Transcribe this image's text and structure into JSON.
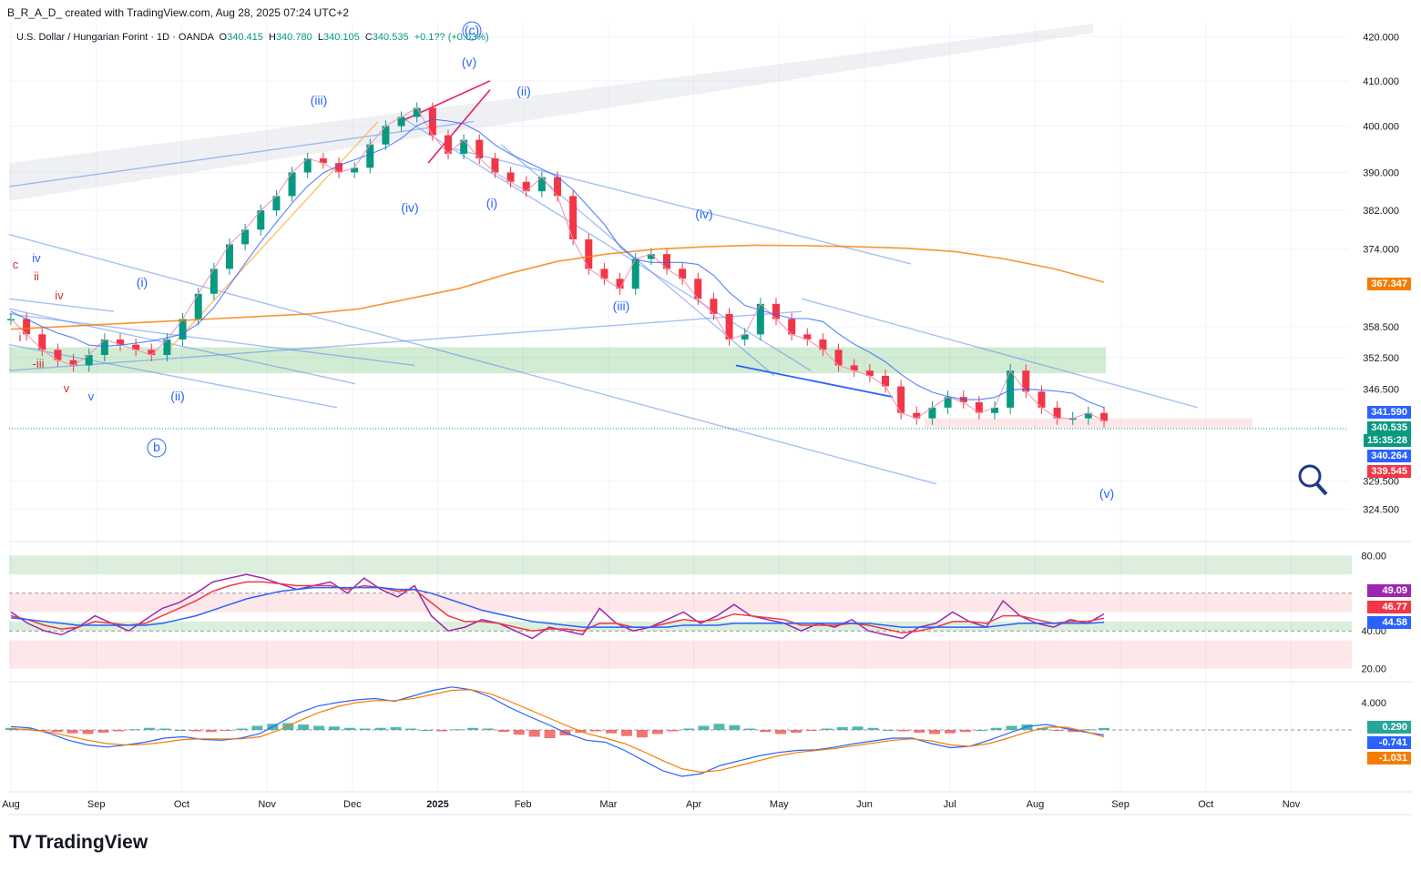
{
  "header": {
    "author_line": "B_R_A_D_ created with TradingView.com, Aug 28, 2025 07:24 UTC+2",
    "symbol": "U.S. Dollar / Hungarian Forint · 1D · OANDA",
    "o_label": "O",
    "o": "340.415",
    "h_label": "H",
    "h": "340.780",
    "l_label": "L",
    "l": "340.105",
    "c_label": "C",
    "c": "340.535",
    "change": "+0.1?? (+0.03%)"
  },
  "brand": {
    "logo": "TV",
    "name": "TradingView"
  },
  "colors": {
    "up": "#089981",
    "down": "#f23645",
    "blue_line": "#2962ff",
    "orange": "#f57c00",
    "green_zone": "#4caf50",
    "red_zone": "#f23645",
    "wave_label": "#2962ff",
    "sub_label": "#d32f2f"
  },
  "chart_data": [
    {
      "type": "line",
      "title": "",
      "x_axis": {
        "ticks": [
          "Aug",
          "Sep",
          "Oct",
          "Nov",
          "Dec",
          "2025",
          "Feb",
          "Mar",
          "Apr",
          "May",
          "Jun",
          "Jul",
          "Aug",
          "Sep",
          "Oct",
          "Nov"
        ]
      },
      "y_axis": {
        "ticks": [
          "420.000",
          "410.000",
          "400.000",
          "390.000",
          "382.000",
          "374.000",
          "358.500",
          "352.500",
          "346.500",
          "329.500",
          "324.500"
        ],
        "scale": "log"
      },
      "series": [
        {
          "values": [
            360,
            357,
            354,
            352,
            351,
            353,
            356,
            355,
            354,
            353,
            356,
            360,
            365,
            370,
            375,
            378,
            382,
            385,
            390,
            393,
            392,
            390,
            391,
            396,
            400,
            402,
            404,
            398,
            394,
            397,
            393,
            390,
            388,
            386,
            389,
            385,
            376,
            370,
            368,
            366,
            372,
            373,
            370,
            368,
            364,
            361,
            356,
            357,
            363,
            360,
            357,
            356,
            354,
            351,
            350,
            349,
            347,
            342,
            341,
            343,
            345,
            344,
            342,
            343,
            350,
            346,
            343,
            341,
            341,
            342,
            340.5
          ]
        }
      ],
      "price_tags": [
        "367.347",
        "341.590",
        "340.535",
        "15:35:28",
        "340.264",
        "339.545"
      ],
      "price_tag_colors": [
        "#f57c00",
        "#2962ff",
        "#089981",
        "#089981",
        "#2962ff",
        "#f23645"
      ],
      "wave_labels": [
        "(c)",
        "(v)",
        "(iii)",
        "(ii)",
        "(iv)",
        "(i)",
        "(iv)",
        "(iii)",
        "(i)",
        "(ii)",
        "b",
        "(v)",
        "iv",
        "ii",
        "iv",
        "i",
        "-iii",
        "c",
        "v",
        "v"
      ],
      "moving_averages": [
        {
          "color": "#f57c00",
          "values": [
            358,
            358.5,
            359,
            359.5,
            360,
            360.5,
            361,
            362,
            364,
            366,
            369,
            371.5,
            373,
            374,
            374.5,
            374.8,
            374.7,
            374.5,
            374.2,
            373.5,
            372,
            370,
            367.3
          ]
        }
      ]
    },
    {
      "type": "line",
      "title": "",
      "y_axis": {
        "ticks": [
          "80.00",
          "40.00",
          "20.00"
        ],
        "range": [
          15,
          85
        ]
      },
      "zones": [
        [
          70,
          80
        ],
        [
          50,
          60
        ],
        [
          40,
          45
        ],
        [
          20,
          35
        ]
      ],
      "price_tags": [
        "49.09",
        "46.77",
        "44.58"
      ],
      "price_tag_colors": [
        "#9c27b0",
        "#f23645",
        "#2962ff"
      ],
      "series": [
        {
          "color": "#9c27b0",
          "values": [
            50,
            44,
            40,
            38,
            42,
            48,
            44,
            40,
            46,
            52,
            55,
            60,
            66,
            68,
            70,
            68,
            65,
            62,
            64,
            66,
            60,
            68,
            62,
            58,
            64,
            48,
            40,
            42,
            46,
            44,
            40,
            36,
            42,
            40,
            38,
            52,
            44,
            40,
            42,
            46,
            50,
            44,
            48,
            54,
            48,
            46,
            44,
            40,
            44,
            42,
            46,
            40,
            38,
            36,
            42,
            44,
            50,
            45,
            42,
            56,
            48,
            44,
            42,
            46,
            44,
            49
          ]
        },
        {
          "color": "#f23645",
          "values": [
            48,
            46,
            43,
            41,
            42,
            45,
            44,
            43,
            44,
            48,
            52,
            56,
            61,
            64,
            66,
            66,
            65,
            64,
            64,
            64,
            62,
            64,
            63,
            61,
            62,
            55,
            48,
            45,
            45,
            44,
            42,
            40,
            41,
            41,
            40,
            44,
            44,
            42,
            42,
            44,
            46,
            45,
            46,
            49,
            48,
            47,
            46,
            43,
            43,
            43,
            44,
            43,
            41,
            39,
            40,
            42,
            45,
            45,
            44,
            48,
            48,
            46,
            44,
            45,
            45,
            46.77
          ]
        },
        {
          "color": "#2962ff",
          "values": [
            47,
            46,
            45,
            44,
            43,
            43,
            43,
            43,
            43,
            44,
            46,
            48,
            51,
            54,
            57,
            59,
            61,
            62,
            63,
            63,
            63,
            63,
            63,
            62,
            62,
            60,
            57,
            54,
            51,
            49,
            47,
            45,
            44,
            43,
            42,
            42,
            42,
            42,
            42,
            42,
            43,
            43,
            43,
            44,
            44,
            44,
            44,
            44,
            44,
            44,
            44,
            44,
            43,
            42,
            42,
            42,
            42,
            42,
            42,
            43,
            44,
            44,
            44,
            44,
            44,
            44.58
          ]
        }
      ]
    },
    {
      "type": "bar",
      "title": "",
      "y_axis": {
        "ticks": [
          "4.000"
        ]
      },
      "price_tags": [
        "0.290",
        "-0.741",
        "-1.031"
      ],
      "price_tag_colors": [
        "#26a69a",
        "#2962ff",
        "#f57c00"
      ],
      "histogram": [
        0.3,
        0.2,
        -0.1,
        -0.3,
        -0.5,
        -0.6,
        -0.4,
        -0.2,
        0.1,
        0.3,
        0.2,
        0.0,
        -0.2,
        -0.3,
        -0.1,
        0.2,
        0.6,
        0.9,
        1.0,
        0.8,
        0.6,
        0.5,
        0.3,
        0.2,
        0.3,
        0.4,
        0.2,
        0.0,
        -0.2,
        0.1,
        0.3,
        0.2,
        -0.3,
        -0.7,
        -1.0,
        -1.2,
        -0.8,
        -0.4,
        -0.2,
        -0.5,
        -0.9,
        -1.1,
        -0.6,
        -0.2,
        0.2,
        0.6,
        0.9,
        0.7,
        0.2,
        -0.3,
        -0.6,
        -0.4,
        -0.1,
        0.2,
        0.4,
        0.5,
        0.3,
        0.0,
        -0.2,
        -0.4,
        -0.6,
        -0.5,
        -0.3,
        0.0,
        0.3,
        0.6,
        0.8,
        0.3,
        -0.1,
        -0.3,
        0.1,
        0.29
      ],
      "series": [
        {
          "name": "",
          "color": "#2962ff",
          "values": [
            0.5,
            0.3,
            -0.5,
            -1.5,
            -2.2,
            -2.5,
            -2.2,
            -1.8,
            -1.2,
            -1.0,
            -1.4,
            -1.5,
            -1.2,
            -0.5,
            1.0,
            2.5,
            3.5,
            4.0,
            4.4,
            4.6,
            4.2,
            5.0,
            5.8,
            6.3,
            5.9,
            4.8,
            3.3,
            2.0,
            0.8,
            -0.5,
            -1.5,
            -1.8,
            -3.0,
            -4.5,
            -6.0,
            -6.8,
            -6.4,
            -5.2,
            -4.5,
            -3.8,
            -3.3,
            -3.0,
            -2.9,
            -2.5,
            -2.0,
            -1.6,
            -1.2,
            -1.2,
            -2.0,
            -2.6,
            -2.4,
            -1.5,
            -0.5,
            0.5,
            0.8,
            0.2,
            -0.3,
            -0.741
          ]
        },
        {
          "name": "",
          "color": "#f57c00",
          "values": [
            0.2,
            0.0,
            -0.3,
            -0.9,
            -1.5,
            -2.0,
            -2.2,
            -2.1,
            -1.8,
            -1.4,
            -1.3,
            -1.3,
            -1.3,
            -1.0,
            0.0,
            1.3,
            2.5,
            3.4,
            4.0,
            4.3,
            4.3,
            4.6,
            5.2,
            5.8,
            5.9,
            5.3,
            4.2,
            3.0,
            1.8,
            0.6,
            -0.5,
            -1.2,
            -2.0,
            -3.2,
            -4.5,
            -5.7,
            -6.2,
            -5.9,
            -5.2,
            -4.5,
            -3.8,
            -3.3,
            -3.0,
            -2.7,
            -2.3,
            -1.9,
            -1.5,
            -1.3,
            -1.6,
            -2.2,
            -2.4,
            -2.0,
            -1.2,
            -0.3,
            0.4,
            0.4,
            -0.2,
            -1.031
          ]
        }
      ]
    }
  ]
}
